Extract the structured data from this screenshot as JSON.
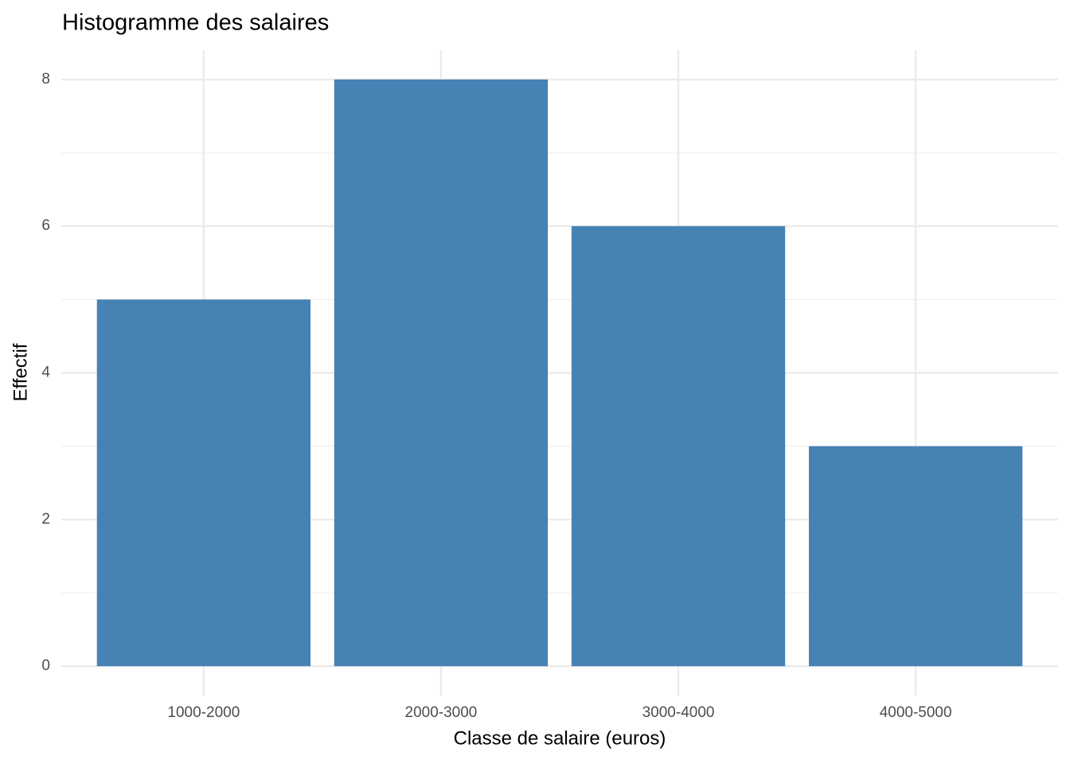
{
  "chart_data": {
    "type": "bar",
    "title": "Histogramme des salaires",
    "x_label": "Classe de salaire (euros)",
    "y_label": "Effectif",
    "categories": [
      "1000-2000",
      "2000-3000",
      "3000-4000",
      "4000-5000"
    ],
    "values": [
      5,
      8,
      6,
      3
    ],
    "color": "#4682b4",
    "ylim": [
      -0.4,
      8.4
    ],
    "yticks": [
      0,
      2,
      4,
      6,
      8
    ],
    "yminorticks": [
      1,
      3,
      5,
      7
    ],
    "grid": true
  }
}
